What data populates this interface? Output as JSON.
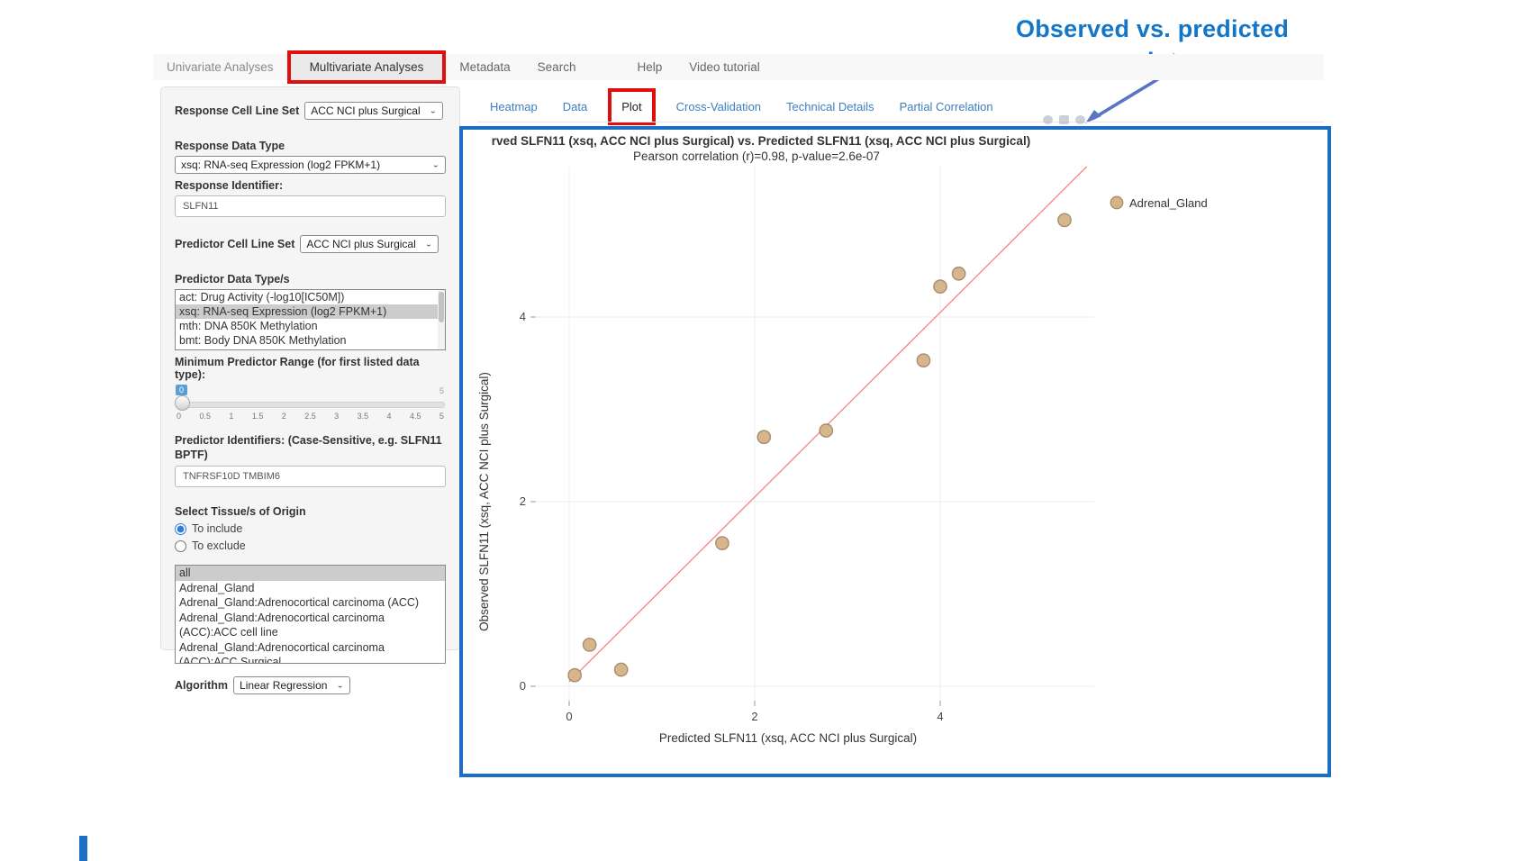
{
  "annotation": {
    "line1": "Observed  vs. predicted",
    "line2": "response plot",
    "text_color": "#1277c8",
    "arrow_color": "#5a74c6"
  },
  "topnav": {
    "items": [
      "Univariate Analyses",
      "Multivariate Analyses",
      "Metadata",
      "Search",
      "Help",
      "Video tutorial"
    ],
    "active": "Multivariate Analyses"
  },
  "sidebar": {
    "response_cell_line_set": {
      "label": "Response Cell Line Set",
      "value": "ACC NCI plus Surgical"
    },
    "response_data_type": {
      "label": "Response Data Type",
      "value": "xsq: RNA-seq Expression (log2 FPKM+1)"
    },
    "response_identifier": {
      "label": "Response Identifier:",
      "value": "SLFN11"
    },
    "predictor_cell_line_set": {
      "label": "Predictor Cell Line Set",
      "value": "ACC NCI plus Surgical"
    },
    "predictor_data_types": {
      "label": "Predictor Data Type/s",
      "items": [
        "act: Drug Activity (-log10[IC50M])",
        "xsq: RNA-seq Expression (log2 FPKM+1)",
        "mth: DNA 850K Methylation",
        "bmt: Body DNA 850K Methylation"
      ],
      "selected": "xsq: RNA-seq Expression (log2 FPKM+1)"
    },
    "slider": {
      "label": "Minimum Predictor Range (for first listed data type):",
      "value": "0",
      "max_label": "5",
      "ticks": [
        "0",
        "0.5",
        "1",
        "1.5",
        "2",
        "2.5",
        "3",
        "3.5",
        "4",
        "4.5",
        "5"
      ]
    },
    "predictor_identifiers": {
      "label": "Predictor Identifiers: (Case-Sensitive, e.g. SLFN11 BPTF)",
      "value": "TNFRSF10D TMBIM6"
    },
    "tissue": {
      "label": "Select Tissue/s of Origin",
      "radio_include": "To include",
      "radio_exclude": "To exclude",
      "radio_selected": "To include",
      "items": [
        "all",
        "Adrenal_Gland",
        "Adrenal_Gland:Adrenocortical carcinoma (ACC)",
        "Adrenal_Gland:Adrenocortical carcinoma (ACC):ACC cell line",
        "Adrenal_Gland:Adrenocortical carcinoma (ACC):ACC Surgical"
      ],
      "selected": "all"
    },
    "algorithm": {
      "label": "Algorithm",
      "value": "Linear Regression"
    }
  },
  "tabs": {
    "items": [
      "Heatmap",
      "Data",
      "Plot",
      "Cross-Validation",
      "Technical Details",
      "Partial Correlation"
    ],
    "active": "Plot"
  },
  "chart_data": {
    "type": "scatter",
    "title": "rved SLFN11 (xsq, ACC NCI plus Surgical) vs. Predicted SLFN11 (xsq, ACC NCI plus Surgical)",
    "subtitle": "Pearson correlation (r)=0.98, p-value=2.6e-07",
    "xlabel": "Predicted SLFN11 (xsq, ACC NCI plus Surgical)",
    "ylabel": "Observed SLFN11 (xsq, ACC NCI plus Surgical)",
    "x_ticks": [
      0,
      2,
      4
    ],
    "y_ticks": [
      0,
      2,
      4
    ],
    "xlim": [
      -0.35,
      5.66
    ],
    "ylim": [
      -0.16,
      5.63
    ],
    "series": [
      {
        "name": "Adrenal_Gland",
        "points": [
          [
            0.06,
            0.12
          ],
          [
            0.22,
            0.45
          ],
          [
            0.56,
            0.18
          ],
          [
            1.65,
            1.55
          ],
          [
            2.1,
            2.7
          ],
          [
            2.77,
            2.77
          ],
          [
            3.82,
            3.53
          ],
          [
            4.0,
            4.33
          ],
          [
            4.2,
            4.47
          ],
          [
            5.34,
            5.05
          ]
        ]
      }
    ],
    "regression_line": {
      "x1": 0.0,
      "y1": 0.05,
      "x2": 5.58,
      "y2": 5.63
    },
    "pearson_r": 0.98,
    "p_value": "2.6e-07",
    "legend_position": "top-right",
    "grid": true,
    "colors": {
      "marker_fill": "#d5b287",
      "marker_stroke": "#8a7150",
      "line": "#f87f7f",
      "grid": "#ececec",
      "tick_text": "#444444",
      "title_text": "#333333",
      "card_border": "#1b6ec2"
    }
  }
}
